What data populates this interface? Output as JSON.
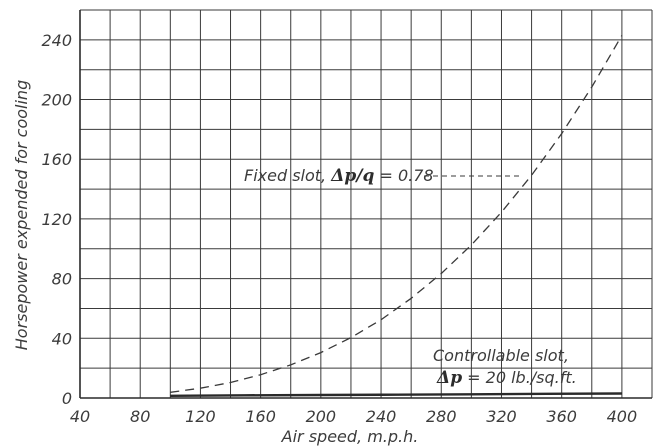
{
  "chart_data": {
    "type": "line",
    "title": "",
    "xlabel": "Air speed, m.p.h.",
    "ylabel": "Horsepower expended for cooling",
    "xlim": [
      40,
      420
    ],
    "ylim": [
      0,
      260
    ],
    "x_ticks": [
      40,
      80,
      120,
      160,
      200,
      240,
      280,
      320,
      360,
      400
    ],
    "y_ticks": [
      0,
      40,
      80,
      120,
      160,
      200,
      240
    ],
    "x_tick_labels": [
      "40",
      "80",
      "120",
      "160",
      "200",
      "240",
      "280",
      "320",
      "360",
      "400"
    ],
    "y_tick_labels": [
      "0",
      "40",
      "80",
      "120",
      "160",
      "200",
      "240"
    ],
    "grid": true,
    "series": [
      {
        "style": "dashed",
        "x": [
          100,
          120,
          140,
          160,
          180,
          200,
          220,
          240,
          260,
          280,
          300,
          320,
          340,
          360,
          380,
          400
        ],
        "y": [
          3.8,
          6.6,
          10.4,
          15.6,
          22.2,
          30.4,
          40.5,
          52.5,
          66.8,
          83.4,
          102.6,
          124.5,
          149.3,
          177.2,
          208.4,
          243.0
        ]
      },
      {
        "style": "solid",
        "x": [
          100,
          150,
          200,
          250,
          300,
          350,
          400
        ],
        "y": [
          1.5,
          1.8,
          2.0,
          2.2,
          2.5,
          2.8,
          3.0
        ]
      }
    ],
    "annotations": [
      {
        "prefix": "Fixed slot, ",
        "formula": "Δp/q",
        "suffix": " = 0.78"
      },
      {
        "line1": "Controllable slot,",
        "formula": "Δp",
        "suffix": " = 20 lb./sq.ft."
      }
    ]
  }
}
